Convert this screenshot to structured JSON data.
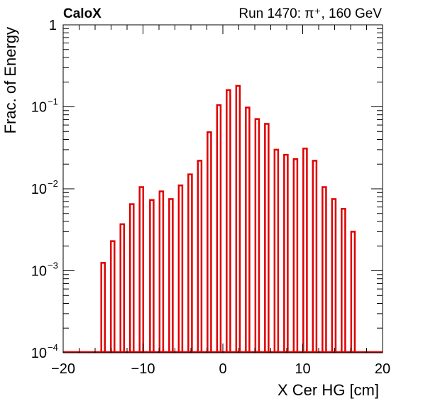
{
  "chart_data": {
    "type": "bar",
    "title_left": "CaloX",
    "title_right": "Run 1470:   π⁺, 160 GeV",
    "xlabel": "X Cer HG [cm]",
    "ylabel": "Frac. of Energy",
    "xlim": [
      -20,
      20
    ],
    "ylim": [
      0.0001,
      1
    ],
    "yscale": "log",
    "bar_color": "#e00000",
    "x_ticks": [
      {
        "value": -20,
        "label": "−20"
      },
      {
        "value": -10,
        "label": "−10"
      },
      {
        "value": 0,
        "label": "0"
      },
      {
        "value": 10,
        "label": "10"
      },
      {
        "value": 20,
        "label": "20"
      }
    ],
    "y_ticks": [
      {
        "value": 0.0001,
        "base": "10",
        "exp": "−4"
      },
      {
        "value": 0.001,
        "base": "10",
        "exp": "−3"
      },
      {
        "value": 0.01,
        "base": "10",
        "exp": "−2"
      },
      {
        "value": 0.1,
        "base": "10",
        "exp": "−1"
      },
      {
        "value": 1,
        "base": "1",
        "exp": ""
      }
    ],
    "x": [
      -15.0,
      -13.8,
      -12.6,
      -11.4,
      -10.2,
      -8.9,
      -7.7,
      -6.5,
      -5.3,
      -4.1,
      -2.9,
      -1.7,
      -0.5,
      0.7,
      1.9,
      3.1,
      4.3,
      5.5,
      6.7,
      7.9,
      9.1,
      10.3,
      11.5,
      12.7,
      13.9,
      15.1,
      16.3
    ],
    "values": [
      0.00125,
      0.0023,
      0.0037,
      0.0065,
      0.0105,
      0.0073,
      0.0093,
      0.0075,
      0.011,
      0.015,
      0.022,
      0.049,
      0.105,
      0.16,
      0.18,
      0.098,
      0.071,
      0.062,
      0.03,
      0.026,
      0.023,
      0.031,
      0.022,
      0.0105,
      0.0075,
      0.0057,
      0.003
    ]
  }
}
